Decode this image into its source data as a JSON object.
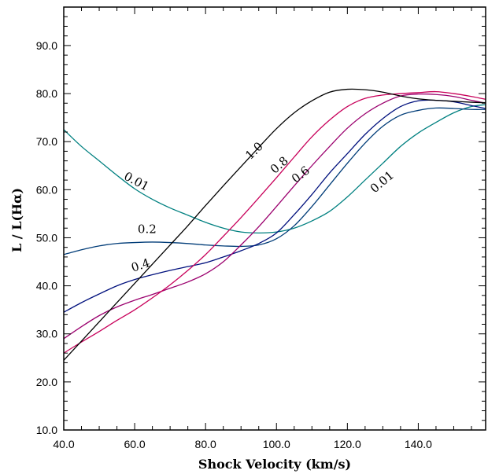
{
  "chart_data": {
    "type": "line",
    "xlabel": "Shock Velocity (km/s)",
    "ylabel": "L / L(Hα)",
    "xlim": [
      40,
      159
    ],
    "ylim": [
      10,
      98
    ],
    "xticks": [
      40,
      60,
      80,
      100,
      120,
      140
    ],
    "xtick_labels": [
      "40.0",
      "60.0",
      "80.0",
      "100.0",
      "120.0",
      "140.0"
    ],
    "yticks": [
      10,
      20,
      30,
      40,
      50,
      60,
      70,
      80,
      90
    ],
    "ytick_labels": [
      "10.0",
      "20.0",
      "30.0",
      "40.0",
      "50.0",
      "60.0",
      "70.0",
      "80.0",
      "90.0"
    ],
    "grid": false,
    "series": [
      {
        "key": "s001",
        "color": "#008080",
        "x": [
          40,
          45,
          50,
          55,
          60,
          65,
          70,
          75,
          80,
          85,
          90,
          95,
          100,
          105,
          110,
          115,
          120,
          125,
          130,
          135,
          140,
          145,
          150,
          155,
          159
        ],
        "y": [
          72.5,
          69,
          66,
          63,
          60.2,
          58,
          56.2,
          54.7,
          53.2,
          52,
          51.2,
          51,
          51.2,
          52,
          53.5,
          55.5,
          58.5,
          62,
          65.5,
          69,
          71.8,
          74,
          76,
          77.3,
          77.7
        ]
      },
      {
        "key": "s02",
        "color": "#003c78",
        "x": [
          40,
          45,
          50,
          55,
          60,
          65,
          70,
          75,
          80,
          85,
          90,
          95,
          100,
          105,
          110,
          115,
          120,
          125,
          130,
          135,
          140,
          145,
          150,
          155,
          159
        ],
        "y": [
          46.5,
          47.5,
          48.3,
          48.8,
          49,
          49.1,
          49,
          48.8,
          48.5,
          48.3,
          48.2,
          48.5,
          49.8,
          52.5,
          56.5,
          61,
          65.5,
          69.7,
          73.2,
          75.5,
          76.5,
          77,
          76.9,
          76.7,
          76.7
        ]
      },
      {
        "key": "s04",
        "color": "#00107d",
        "x": [
          40,
          45,
          50,
          55,
          60,
          65,
          70,
          75,
          80,
          85,
          90,
          95,
          100,
          105,
          110,
          115,
          120,
          125,
          130,
          135,
          140,
          145,
          150,
          155,
          159
        ],
        "y": [
          34.5,
          36.5,
          38.3,
          40,
          41.3,
          42.3,
          43.2,
          44,
          44.8,
          46,
          47.3,
          48.8,
          51,
          54.8,
          59,
          63.5,
          67.5,
          71.5,
          74.8,
          77.3,
          78.5,
          78.6,
          78.3,
          77.5,
          76.9
        ]
      },
      {
        "key": "s06",
        "color": "#9b006e",
        "x": [
          40,
          45,
          50,
          55,
          60,
          65,
          70,
          75,
          80,
          85,
          90,
          95,
          100,
          105,
          110,
          115,
          120,
          125,
          130,
          135,
          140,
          145,
          150,
          155,
          159
        ],
        "y": [
          29,
          31.5,
          33.8,
          35.6,
          37,
          38.2,
          39.5,
          40.8,
          42.5,
          45,
          48.5,
          52.3,
          56.5,
          60.8,
          65,
          69,
          72.8,
          75.8,
          78,
          79.5,
          79.9,
          79.8,
          79.4,
          78.6,
          78
        ]
      },
      {
        "key": "s08",
        "color": "#c8005a",
        "x": [
          40,
          45,
          50,
          55,
          60,
          65,
          70,
          75,
          80,
          85,
          90,
          95,
          100,
          105,
          110,
          115,
          120,
          125,
          130,
          135,
          140,
          145,
          150,
          155,
          159
        ],
        "y": [
          26,
          28.3,
          30.5,
          32.8,
          35,
          37.5,
          40.2,
          43.2,
          46.5,
          50.3,
          54.2,
          58.3,
          62.5,
          66.8,
          71,
          74.5,
          77.3,
          79,
          79.7,
          80,
          80.2,
          80.4,
          80,
          79.4,
          78.8
        ]
      },
      {
        "key": "s10",
        "color": "#000000",
        "x": [
          40,
          45,
          50,
          55,
          60,
          65,
          70,
          75,
          80,
          85,
          90,
          95,
          100,
          105,
          110,
          115,
          120,
          125,
          130,
          135,
          140,
          145,
          150,
          155,
          159
        ],
        "y": [
          24.5,
          28.5,
          32.5,
          36.5,
          40.5,
          44.5,
          48.5,
          52.5,
          56.7,
          60.8,
          64.8,
          68.8,
          72.7,
          76,
          78.5,
          80.3,
          80.9,
          80.8,
          80.3,
          79.5,
          78.9,
          78.6,
          78.4,
          78.2,
          78.1
        ]
      }
    ],
    "annotations": [
      {
        "text": "1.0",
        "x": 94.5,
        "y": 67.5,
        "angle": -44
      },
      {
        "text": "0.8",
        "x": 101.5,
        "y": 64.5,
        "angle": -40
      },
      {
        "text": "0.6",
        "x": 107.5,
        "y": 62.5,
        "angle": -38
      },
      {
        "text": "0.01",
        "x": 60,
        "y": 61,
        "angle": 28
      },
      {
        "text": "0.2",
        "x": 63.5,
        "y": 51,
        "angle": 0
      },
      {
        "text": "0.4",
        "x": 62,
        "y": 43.5,
        "angle": -18
      },
      {
        "text": "0.01",
        "x": 130.5,
        "y": 61,
        "angle": -40
      }
    ]
  }
}
